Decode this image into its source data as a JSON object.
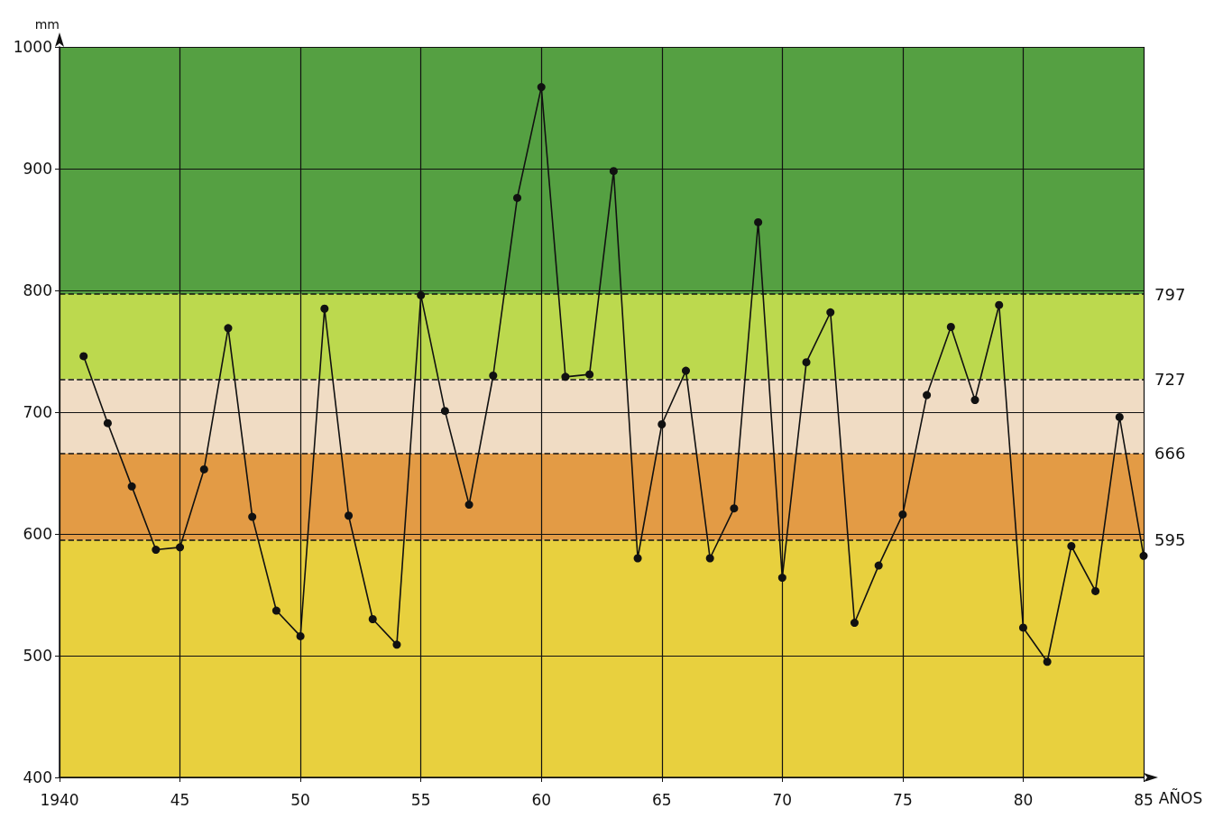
{
  "chart_data": {
    "type": "line",
    "xlabel": "AÑOS",
    "ylabel": "mm",
    "x": [
      1941,
      1942,
      1943,
      1944,
      1945,
      1946,
      1947,
      1948,
      1949,
      1950,
      1951,
      1952,
      1953,
      1954,
      1955,
      1956,
      1957,
      1958,
      1959,
      1960,
      1961,
      1962,
      1963,
      1964,
      1965,
      1966,
      1967,
      1968,
      1969,
      1970,
      1971,
      1972,
      1973,
      1974,
      1975,
      1976,
      1977,
      1978,
      1979,
      1980,
      1981,
      1982,
      1983,
      1984,
      1985
    ],
    "series": [
      {
        "color": "#111111",
        "values": [
          746,
          691,
          639,
          587,
          589,
          653,
          769,
          614,
          537,
          516,
          785,
          615,
          530,
          509,
          796,
          701,
          624,
          730,
          876,
          967,
          729,
          731,
          898,
          580,
          690,
          734,
          580,
          621,
          856,
          564,
          741,
          782,
          527,
          574,
          616,
          714,
          770,
          710,
          788,
          523,
          495,
          590,
          553,
          696,
          582
        ]
      }
    ],
    "xlim": [
      1940,
      1985
    ],
    "xticks": [
      1940,
      {
        "value": 1945,
        "label": "45"
      },
      {
        "value": 1950,
        "label": "50"
      },
      {
        "value": 1955,
        "label": "55"
      },
      {
        "value": 1960,
        "label": "60"
      },
      {
        "value": 1965,
        "label": "65"
      },
      {
        "value": 1970,
        "label": "70"
      },
      {
        "value": 1975,
        "label": "75"
      },
      {
        "value": 1980,
        "label": "80"
      },
      {
        "value": 1985,
        "label": "85"
      }
    ],
    "ylim": [
      400,
      1000
    ],
    "yticks": [
      400,
      500,
      600,
      700,
      800,
      900,
      1000
    ],
    "bands": [
      {
        "axis": "y",
        "from": 400,
        "to": 595,
        "color": "#e8d03e"
      },
      {
        "axis": "y",
        "from": 595,
        "to": 666,
        "color": "#e39b45"
      },
      {
        "axis": "y",
        "from": 666,
        "to": 727,
        "color": "#f0dcc4"
      },
      {
        "axis": "y",
        "from": 727,
        "to": 797,
        "color": "#bcd94e"
      },
      {
        "axis": "y",
        "from": 797,
        "to": 1000,
        "color": "#55a042"
      }
    ],
    "ref_lines": [
      {
        "axis": "y",
        "value": 595,
        "label": "595",
        "line_style": "dashed"
      },
      {
        "axis": "y",
        "value": 666,
        "label": "666",
        "line_style": "dashed"
      },
      {
        "axis": "y",
        "value": 727,
        "label": "727",
        "line_style": "dashed"
      },
      {
        "axis": "y",
        "value": 797,
        "label": "797",
        "line_style": "dashed"
      }
    ],
    "grid": true,
    "marker": "circle",
    "line_style": "solid"
  }
}
